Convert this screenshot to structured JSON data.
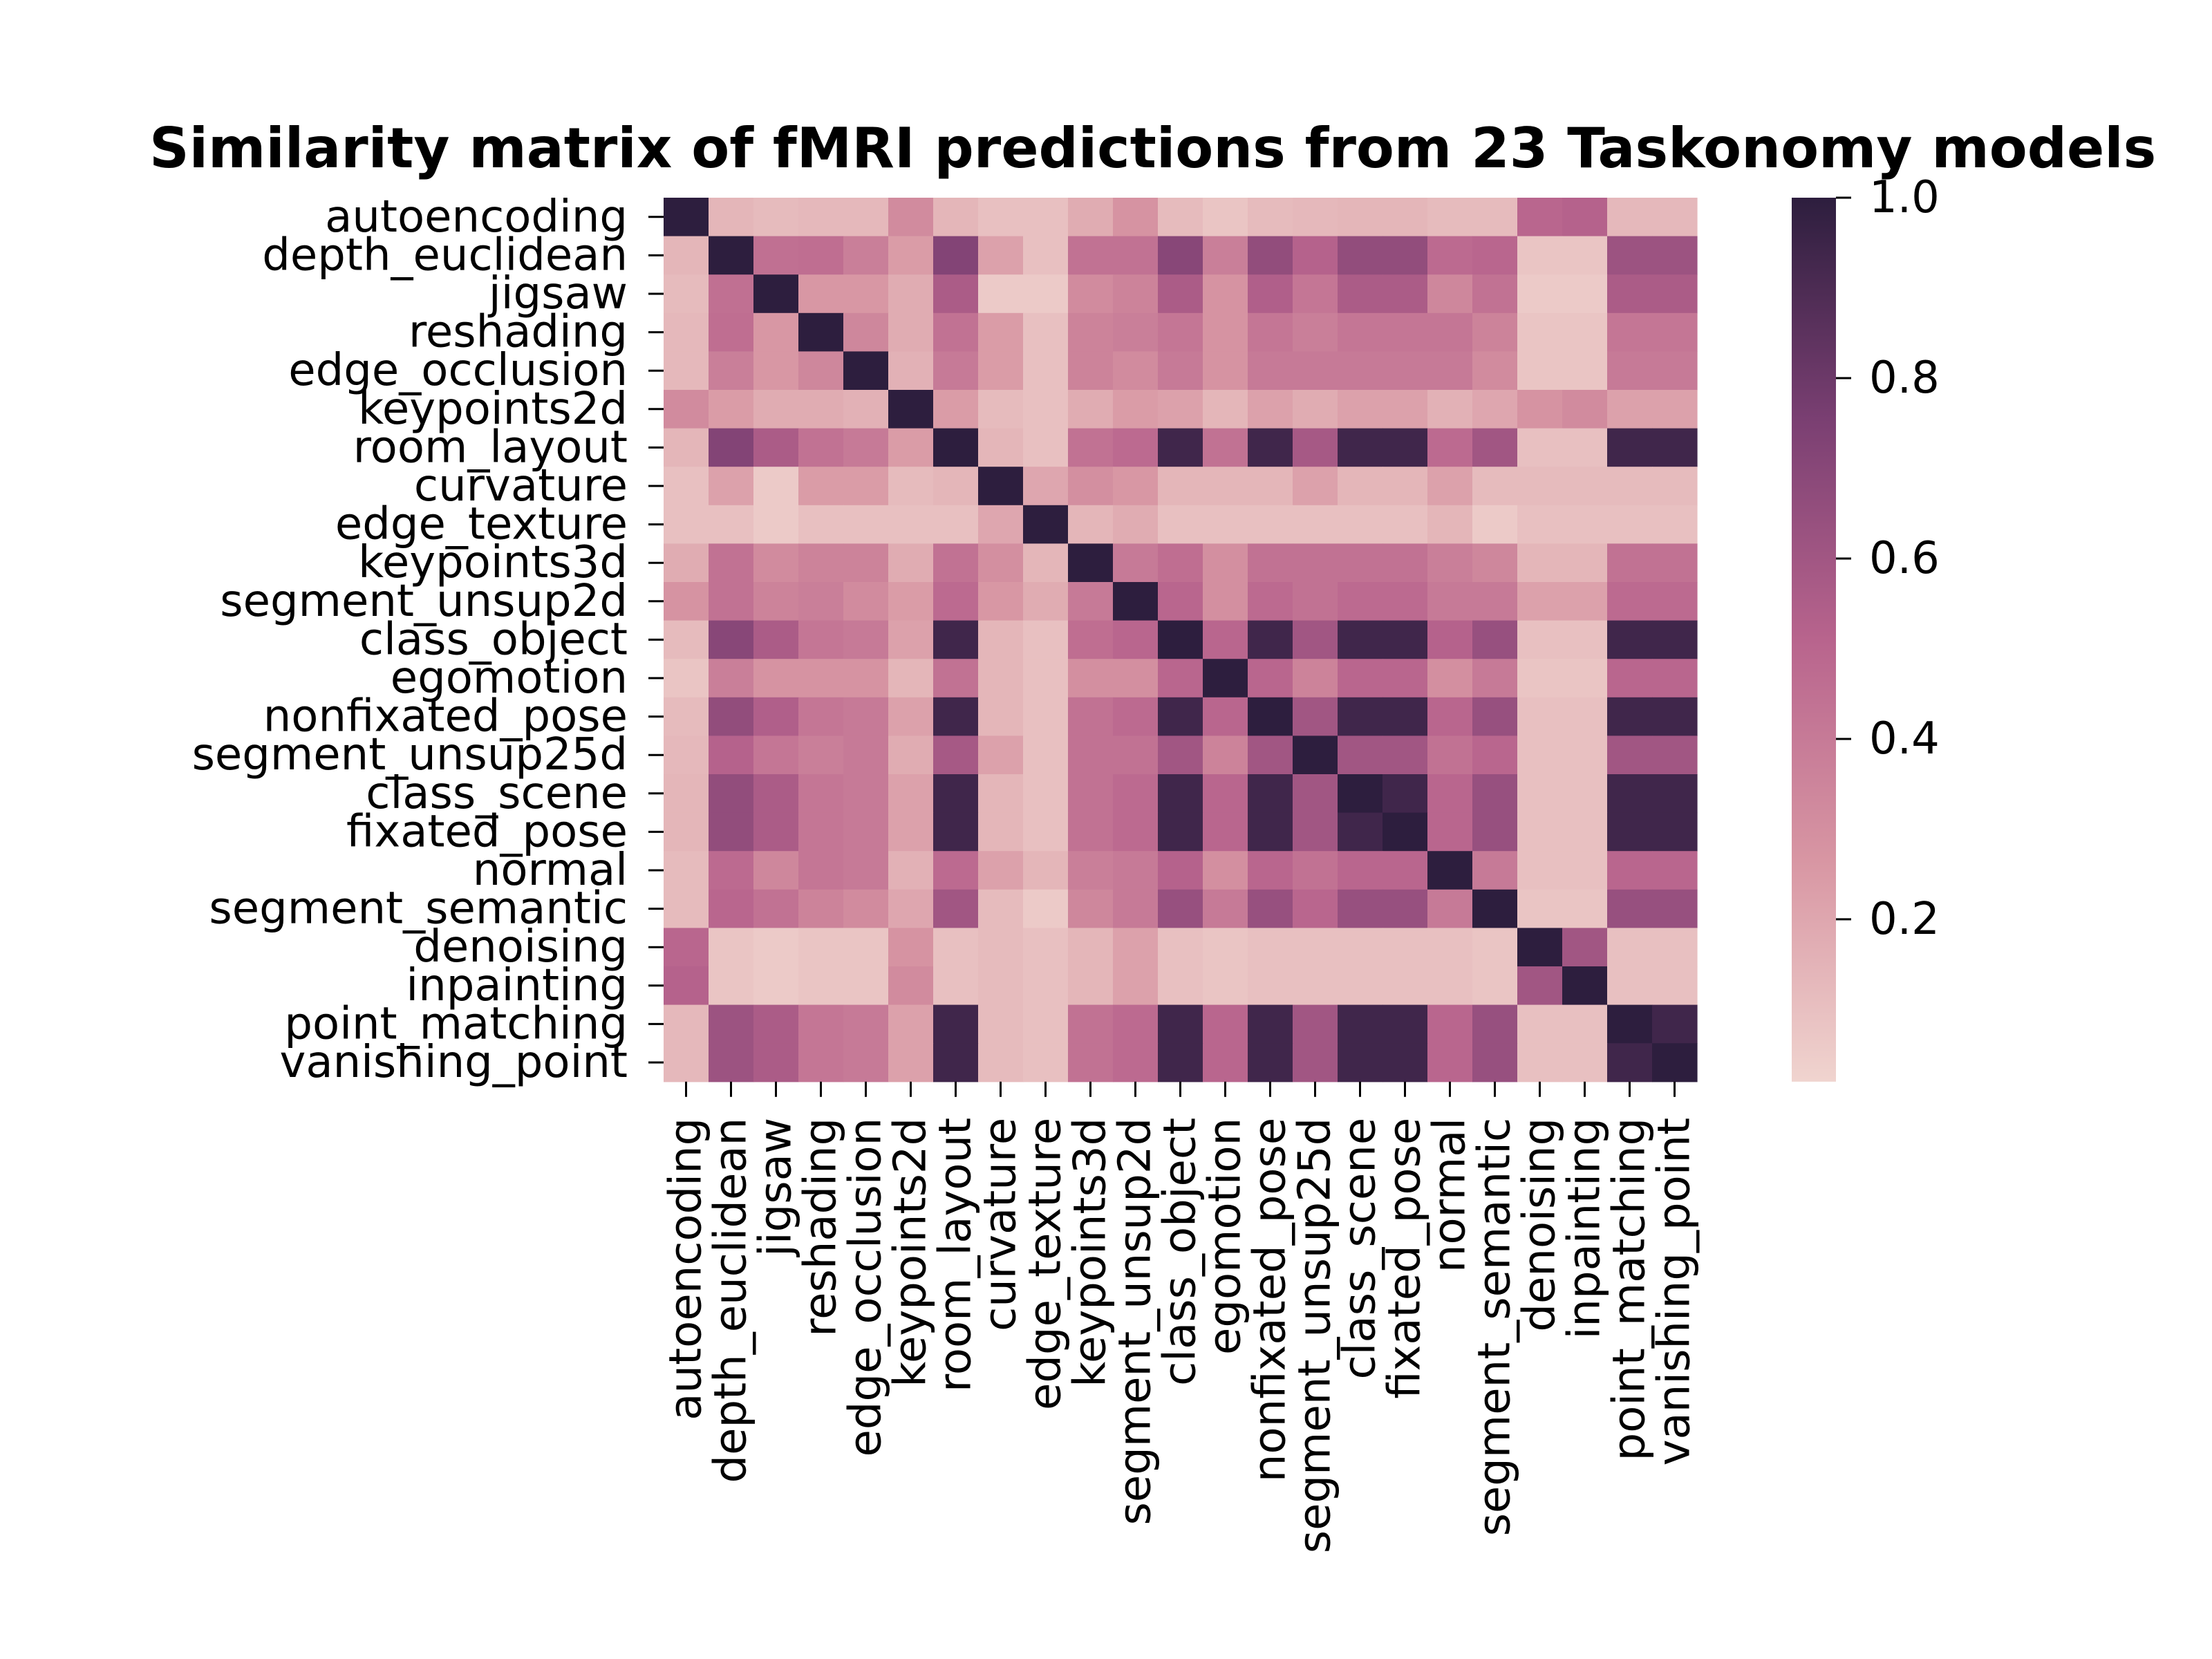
{
  "chart_data": {
    "type": "heatmap",
    "title": "Similarity matrix of fMRI predictions from 23 Taskonomy models",
    "xlabel": "",
    "ylabel": "",
    "labels": [
      "autoencoding",
      "depth_euclidean",
      "jigsaw",
      "reshading",
      "edge_occlusion",
      "keypoints2d",
      "room_layout",
      "curvature",
      "edge_texture",
      "keypoints3d",
      "segment_unsup2d",
      "class_object",
      "egomotion",
      "nonfixated_pose",
      "segment_unsup25d",
      "class_scene",
      "fixated_pose",
      "normal",
      "segment_semantic",
      "denoising",
      "inpainting",
      "point_matching",
      "vanishing_point"
    ],
    "values": [
      [
        1.0,
        0.14,
        0.12,
        0.13,
        0.13,
        0.32,
        0.14,
        0.1,
        0.1,
        0.18,
        0.28,
        0.12,
        0.08,
        0.12,
        0.13,
        0.14,
        0.14,
        0.12,
        0.12,
        0.5,
        0.52,
        0.13,
        0.13
      ],
      [
        0.14,
        1.0,
        0.45,
        0.46,
        0.38,
        0.24,
        0.72,
        0.22,
        0.1,
        0.44,
        0.44,
        0.7,
        0.38,
        0.66,
        0.52,
        0.66,
        0.66,
        0.48,
        0.5,
        0.08,
        0.08,
        0.62,
        0.62
      ],
      [
        0.12,
        0.45,
        1.0,
        0.26,
        0.26,
        0.18,
        0.56,
        0.06,
        0.06,
        0.32,
        0.36,
        0.56,
        0.28,
        0.54,
        0.42,
        0.56,
        0.56,
        0.34,
        0.44,
        0.06,
        0.06,
        0.56,
        0.56
      ],
      [
        0.13,
        0.46,
        0.26,
        1.0,
        0.34,
        0.18,
        0.44,
        0.24,
        0.1,
        0.36,
        0.38,
        0.42,
        0.28,
        0.42,
        0.38,
        0.42,
        0.42,
        0.42,
        0.36,
        0.08,
        0.08,
        0.42,
        0.42
      ],
      [
        0.13,
        0.38,
        0.26,
        0.34,
        1.0,
        0.16,
        0.4,
        0.24,
        0.1,
        0.36,
        0.32,
        0.4,
        0.28,
        0.4,
        0.4,
        0.4,
        0.4,
        0.4,
        0.32,
        0.08,
        0.08,
        0.4,
        0.4
      ],
      [
        0.32,
        0.24,
        0.18,
        0.18,
        0.16,
        1.0,
        0.24,
        0.12,
        0.1,
        0.18,
        0.24,
        0.22,
        0.14,
        0.22,
        0.18,
        0.22,
        0.22,
        0.16,
        0.2,
        0.28,
        0.32,
        0.22,
        0.22
      ],
      [
        0.14,
        0.72,
        0.56,
        0.44,
        0.4,
        0.24,
        1.0,
        0.14,
        0.1,
        0.44,
        0.48,
        0.94,
        0.44,
        0.94,
        0.58,
        0.94,
        0.94,
        0.48,
        0.6,
        0.1,
        0.1,
        0.94,
        0.94
      ],
      [
        0.1,
        0.22,
        0.06,
        0.24,
        0.24,
        0.12,
        0.14,
        1.0,
        0.2,
        0.3,
        0.26,
        0.14,
        0.14,
        0.14,
        0.22,
        0.14,
        0.14,
        0.22,
        0.12,
        0.12,
        0.12,
        0.12,
        0.12
      ],
      [
        0.1,
        0.1,
        0.06,
        0.1,
        0.1,
        0.1,
        0.1,
        0.2,
        1.0,
        0.14,
        0.18,
        0.1,
        0.1,
        0.1,
        0.1,
        0.1,
        0.1,
        0.14,
        0.06,
        0.1,
        0.1,
        0.1,
        0.1
      ],
      [
        0.18,
        0.44,
        0.32,
        0.36,
        0.36,
        0.18,
        0.44,
        0.3,
        0.14,
        1.0,
        0.4,
        0.46,
        0.3,
        0.44,
        0.44,
        0.44,
        0.44,
        0.38,
        0.34,
        0.14,
        0.14,
        0.44,
        0.44
      ],
      [
        0.28,
        0.44,
        0.36,
        0.38,
        0.32,
        0.24,
        0.48,
        0.26,
        0.18,
        0.4,
        1.0,
        0.5,
        0.3,
        0.48,
        0.44,
        0.48,
        0.48,
        0.4,
        0.4,
        0.22,
        0.22,
        0.48,
        0.48
      ],
      [
        0.12,
        0.7,
        0.56,
        0.42,
        0.4,
        0.22,
        0.94,
        0.14,
        0.1,
        0.46,
        0.5,
        1.0,
        0.5,
        0.94,
        0.6,
        0.94,
        0.94,
        0.52,
        0.64,
        0.1,
        0.1,
        0.94,
        0.94
      ],
      [
        0.08,
        0.38,
        0.28,
        0.28,
        0.28,
        0.14,
        0.44,
        0.14,
        0.1,
        0.3,
        0.3,
        0.5,
        1.0,
        0.5,
        0.36,
        0.5,
        0.5,
        0.3,
        0.4,
        0.08,
        0.08,
        0.5,
        0.5
      ],
      [
        0.12,
        0.66,
        0.54,
        0.42,
        0.4,
        0.22,
        0.94,
        0.14,
        0.1,
        0.44,
        0.48,
        0.94,
        0.5,
        1.0,
        0.6,
        0.94,
        0.94,
        0.5,
        0.64,
        0.1,
        0.1,
        0.94,
        0.94
      ],
      [
        0.13,
        0.52,
        0.42,
        0.38,
        0.4,
        0.18,
        0.58,
        0.22,
        0.1,
        0.44,
        0.44,
        0.6,
        0.36,
        0.6,
        1.0,
        0.6,
        0.6,
        0.44,
        0.5,
        0.1,
        0.1,
        0.6,
        0.6
      ],
      [
        0.14,
        0.66,
        0.56,
        0.42,
        0.4,
        0.22,
        0.94,
        0.14,
        0.1,
        0.44,
        0.48,
        0.94,
        0.5,
        0.94,
        0.6,
        1.0,
        0.94,
        0.5,
        0.64,
        0.1,
        0.1,
        0.94,
        0.94
      ],
      [
        0.14,
        0.66,
        0.56,
        0.42,
        0.4,
        0.22,
        0.94,
        0.14,
        0.1,
        0.44,
        0.48,
        0.94,
        0.5,
        0.94,
        0.6,
        0.94,
        1.0,
        0.5,
        0.64,
        0.1,
        0.1,
        0.94,
        0.94
      ],
      [
        0.12,
        0.48,
        0.34,
        0.42,
        0.4,
        0.16,
        0.48,
        0.22,
        0.14,
        0.38,
        0.4,
        0.52,
        0.3,
        0.5,
        0.44,
        0.5,
        0.5,
        1.0,
        0.4,
        0.1,
        0.1,
        0.5,
        0.5
      ],
      [
        0.12,
        0.5,
        0.44,
        0.36,
        0.32,
        0.2,
        0.6,
        0.12,
        0.06,
        0.34,
        0.4,
        0.64,
        0.4,
        0.64,
        0.5,
        0.64,
        0.64,
        0.4,
        1.0,
        0.08,
        0.08,
        0.64,
        0.64
      ],
      [
        0.5,
        0.08,
        0.06,
        0.08,
        0.08,
        0.28,
        0.1,
        0.12,
        0.1,
        0.14,
        0.22,
        0.1,
        0.08,
        0.1,
        0.1,
        0.1,
        0.1,
        0.1,
        0.08,
        1.0,
        0.6,
        0.1,
        0.1
      ],
      [
        0.52,
        0.08,
        0.06,
        0.08,
        0.08,
        0.32,
        0.1,
        0.12,
        0.1,
        0.14,
        0.22,
        0.1,
        0.08,
        0.1,
        0.1,
        0.1,
        0.1,
        0.1,
        0.08,
        0.6,
        1.0,
        0.1,
        0.1
      ],
      [
        0.13,
        0.62,
        0.56,
        0.42,
        0.4,
        0.22,
        0.94,
        0.12,
        0.1,
        0.44,
        0.48,
        0.94,
        0.5,
        0.94,
        0.6,
        0.94,
        0.94,
        0.5,
        0.64,
        0.1,
        0.1,
        1.0,
        0.94
      ],
      [
        0.13,
        0.62,
        0.56,
        0.42,
        0.4,
        0.22,
        0.94,
        0.12,
        0.1,
        0.44,
        0.48,
        0.94,
        0.5,
        0.94,
        0.6,
        0.94,
        0.94,
        0.5,
        0.64,
        0.1,
        0.1,
        0.94,
        1.0
      ]
    ],
    "color_range": [
      0.02,
      1.0
    ],
    "colormap_stops": [
      "#f0d4cf",
      "#d896a3",
      "#b8648d",
      "#7a3f72",
      "#2d1e3e"
    ],
    "colorbar": {
      "ticks": [
        0.2,
        0.4,
        0.6,
        0.8,
        1.0
      ],
      "tick_labels": [
        "0.2",
        "0.4",
        "0.6",
        "0.8",
        "1.0"
      ]
    },
    "grid": false,
    "legend": "none"
  }
}
